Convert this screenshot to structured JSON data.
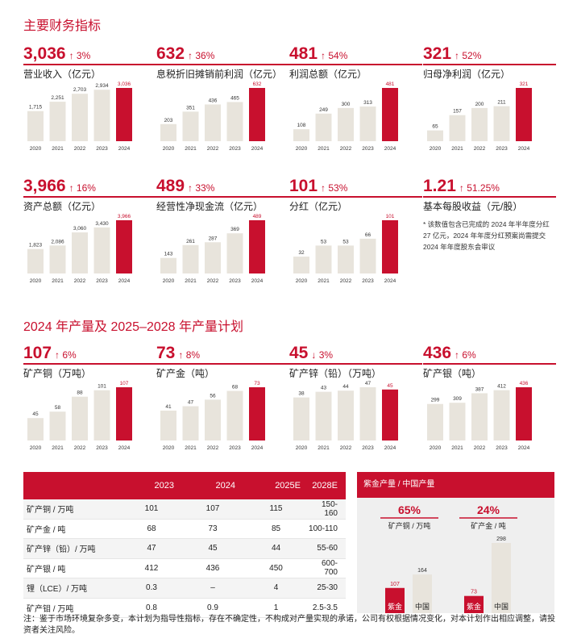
{
  "section1": {
    "title": "主要财务指标"
  },
  "section2": {
    "title": "2024 年产量及 2025–2028 年产量计划"
  },
  "metrics_row1": [
    {
      "value": "3,036",
      "change": "↑ 3%",
      "label": "营业收入（亿元）",
      "years": [
        "2020",
        "2021",
        "2022",
        "2023",
        "2024"
      ],
      "bars": [
        1715,
        2251,
        2703,
        2934,
        3036
      ],
      "bar_labels": [
        "1,715",
        "2,251",
        "2,703",
        "2,934",
        "3,036"
      ]
    },
    {
      "value": "632",
      "change": "↑ 36%",
      "label": "息税折旧摊销前利润（亿元）",
      "years": [
        "2020",
        "2021",
        "2022",
        "2023",
        "2024"
      ],
      "bars": [
        203,
        351,
        436,
        465,
        632
      ],
      "bar_labels": [
        "203",
        "351",
        "436",
        "465",
        "632"
      ]
    },
    {
      "value": "481",
      "change": "↑ 54%",
      "label": "利润总额（亿元）",
      "years": [
        "2020",
        "2021",
        "2022",
        "2023",
        "2024"
      ],
      "bars": [
        108,
        249,
        300,
        313,
        481
      ],
      "bar_labels": [
        "108",
        "249",
        "300",
        "313",
        "481"
      ]
    },
    {
      "value": "321",
      "change": "↑ 52%",
      "label": "归母净利润（亿元）",
      "years": [
        "2020",
        "2021",
        "2022",
        "2023",
        "2024"
      ],
      "bars": [
        65,
        157,
        200,
        211,
        321
      ],
      "bar_labels": [
        "65",
        "157",
        "200",
        "211",
        "321"
      ]
    }
  ],
  "metrics_row2": [
    {
      "value": "3,966",
      "change": "↑ 16%",
      "label": "资产总额（亿元）",
      "years": [
        "2020",
        "2021",
        "2022",
        "2023",
        "2024"
      ],
      "bars": [
        1823,
        2086,
        3060,
        3430,
        3966
      ],
      "bar_labels": [
        "1,823",
        "2,086",
        "3,060",
        "3,430",
        "3,966"
      ]
    },
    {
      "value": "489",
      "change": "↑ 33%",
      "label": "经营性净现金流（亿元）",
      "years": [
        "2020",
        "2021",
        "2022",
        "2023",
        "2024"
      ],
      "bars": [
        143,
        261,
        287,
        369,
        489
      ],
      "bar_labels": [
        "143",
        "261",
        "287",
        "369",
        "489"
      ]
    },
    {
      "value": "101",
      "change": "↑ 53%",
      "label": "分红（亿元）",
      "years": [
        "2020",
        "2021",
        "2022",
        "2023",
        "2024"
      ],
      "bars": [
        32,
        53,
        53,
        66,
        101
      ],
      "bar_labels": [
        "32",
        "53",
        "53",
        "66",
        "101"
      ]
    }
  ],
  "eps": {
    "value": "1.21",
    "change": "↑ 51.25%",
    "label": "基本每股收益（元/股）",
    "note": "* 该数值包含已完成的 2024 年半年度分红 27 亿元，2024 年年度分红预案尚需提交 2024 年年度股东会审议"
  },
  "metrics_row3": [
    {
      "value": "107",
      "change": "↑ 6%",
      "label": "矿产铜（万吨）",
      "years": [
        "2020",
        "2021",
        "2022",
        "2023",
        "2024"
      ],
      "bars": [
        45,
        58,
        88,
        101,
        107
      ],
      "bar_labels": [
        "45",
        "58",
        "88",
        "101",
        "107"
      ]
    },
    {
      "value": "73",
      "change": "↑ 8%",
      "label": "矿产金（吨）",
      "years": [
        "2020",
        "2021",
        "2022",
        "2023",
        "2024"
      ],
      "bars": [
        41,
        47,
        56,
        68,
        73
      ],
      "bar_labels": [
        "41",
        "47",
        "56",
        "68",
        "73"
      ]
    },
    {
      "value": "45",
      "change": "↓ 3%",
      "label": "矿产锌（铅）（万吨）",
      "years": [
        "2020",
        "2021",
        "2022",
        "2023",
        "2024"
      ],
      "bars": [
        38,
        43,
        44,
        47,
        45
      ],
      "bar_labels": [
        "38",
        "43",
        "44",
        "47",
        "45"
      ]
    },
    {
      "value": "436",
      "change": "↑ 6%",
      "label": "矿产银（吨）",
      "years": [
        "2020",
        "2021",
        "2022",
        "2023",
        "2024"
      ],
      "bars": [
        299,
        309,
        387,
        412,
        436
      ],
      "bar_labels": [
        "299",
        "309",
        "387",
        "412",
        "436"
      ]
    }
  ],
  "production_table": {
    "headers": [
      "",
      "2023",
      "2024",
      "2025E",
      "2028E"
    ],
    "rows": [
      [
        "矿产铜 / 万吨",
        "101",
        "107",
        "115",
        "150-160"
      ],
      [
        "矿产金 / 吨",
        "68",
        "73",
        "85",
        "100-110"
      ],
      [
        "矿产锌（铅）/ 万吨",
        "47",
        "45",
        "44",
        "55-60"
      ],
      [
        "矿产银 / 吨",
        "412",
        "436",
        "450",
        "600-700"
      ],
      [
        "锂（LCE）/ 万吨",
        "0.3",
        "–",
        "4",
        "25-30"
      ],
      [
        "矿产钼 / 万吨",
        "0.8",
        "0.9",
        "1",
        "2.5-3.5"
      ]
    ]
  },
  "comparison": {
    "title": "紫金产量 / 中国产量",
    "groups": [
      {
        "pct": "65%",
        "label": "矿产铜 / 万吨",
        "zijin": 107,
        "china": 164,
        "zijin_label": "107",
        "china_label": "164",
        "zijin_name": "紫金",
        "china_name": "中国"
      },
      {
        "pct": "24%",
        "label": "矿产金 / 吨",
        "zijin": 73,
        "china": 298,
        "zijin_label": "73",
        "china_label": "298",
        "zijin_name": "紫金",
        "china_name": "中国"
      }
    ]
  },
  "footnote": "注：鉴于市场环境复杂多变，本计划为指导性指标，存在不确定性，不构成对产量实现的承诺，公司有权根据情况变化，对本计划作出相应调整，请投资者关注风险。",
  "colors": {
    "accent": "#c8102e",
    "bar": "#e8e4dc"
  }
}
